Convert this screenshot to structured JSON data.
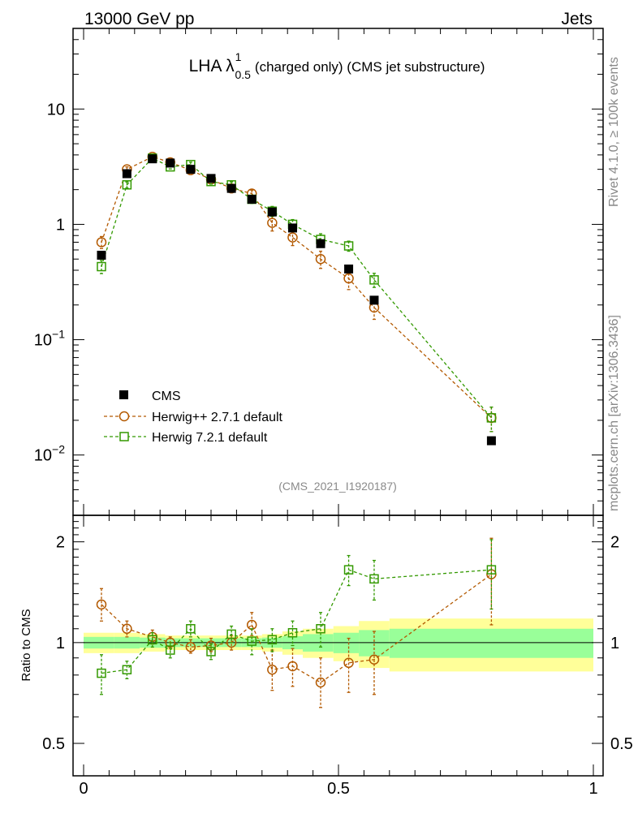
{
  "header": {
    "left": "13000 GeV pp",
    "right": "Jets"
  },
  "side_labels": {
    "top": "Rivet 4.1.0, ≥ 100k events",
    "bottom": "mcplots.cern.ch [arXiv:1306.3436]"
  },
  "watermark": "(CMS_2021_I1920187)",
  "colors": {
    "cms": "#000000",
    "herwigpp": "#b35900",
    "herwig7": "#339900",
    "band_outer": "#ffff99",
    "band_inner": "#99ff99"
  },
  "chart_data": [
    {
      "type": "scatter",
      "title": "LHA λ",
      "title_sup": "1",
      "title_sub": "0.5",
      "title_rest": "(charged only) (CMS jet substructure)",
      "yscale": "log",
      "xlim": [
        0,
        1
      ],
      "ylim": [
        0.003,
        50
      ],
      "ytick_labels": [
        {
          "value": 10,
          "base": "10",
          "exp": ""
        },
        {
          "value": 1,
          "base": "1",
          "exp": ""
        },
        {
          "value": 0.1,
          "base": "10",
          "exp": "−1"
        },
        {
          "value": 0.01,
          "base": "10",
          "exp": "−2"
        }
      ],
      "legend_position": "lower-left",
      "legend": [
        "CMS",
        "Herwig++ 2.7.1 default",
        "Herwig 7.2.1 default"
      ],
      "x": [
        0.035,
        0.085,
        0.135,
        0.17,
        0.21,
        0.25,
        0.29,
        0.33,
        0.37,
        0.41,
        0.465,
        0.52,
        0.57,
        0.8
      ],
      "series": [
        {
          "name": "CMS",
          "marker": "filled-square",
          "values": [
            0.54,
            2.75,
            3.7,
            3.4,
            3.0,
            2.5,
            2.05,
            1.65,
            1.28,
            0.93,
            0.68,
            0.41,
            0.22,
            0.0133
          ]
        },
        {
          "name": "Herwig++ 2.7.1 default",
          "marker": "open-circle",
          "values": [
            0.7,
            3.0,
            3.85,
            3.45,
            2.95,
            2.45,
            2.05,
            1.85,
            1.03,
            0.77,
            0.5,
            0.34,
            0.19,
            0.021
          ],
          "err_rel": [
            0.12,
            0.05,
            0.04,
            0.04,
            0.04,
            0.05,
            0.05,
            0.07,
            0.15,
            0.15,
            0.17,
            0.2,
            0.21,
            0.24
          ]
        },
        {
          "name": "Herwig 7.2.1 default",
          "marker": "open-square",
          "values": [
            0.43,
            2.2,
            3.75,
            3.15,
            3.3,
            2.35,
            2.2,
            1.65,
            1.3,
            1.0,
            0.74,
            0.65,
            0.33,
            0.021
          ],
          "err_rel": [
            0.13,
            0.06,
            0.04,
            0.04,
            0.05,
            0.05,
            0.06,
            0.08,
            0.1,
            0.1,
            0.12,
            0.1,
            0.14,
            0.24
          ]
        }
      ]
    },
    {
      "type": "scatter",
      "ylabel": "Ratio to CMS",
      "yscale": "log",
      "xlim": [
        0,
        1
      ],
      "ylim": [
        0.4,
        2.4
      ],
      "ytick_labels": [
        {
          "value": 2,
          "label": "2"
        },
        {
          "value": 1,
          "label": "1"
        },
        {
          "value": 0.5,
          "label": "0.5"
        }
      ],
      "xtick_labels": [
        {
          "value": 0,
          "label": "0"
        },
        {
          "value": 0.5,
          "label": "0.5"
        },
        {
          "value": 1,
          "label": "1"
        }
      ],
      "x": [
        0.035,
        0.085,
        0.135,
        0.17,
        0.21,
        0.25,
        0.29,
        0.33,
        0.37,
        0.41,
        0.465,
        0.52,
        0.57,
        0.8
      ],
      "series": [
        {
          "name": "Herwig++ 2.7.1 default",
          "values": [
            1.3,
            1.1,
            1.04,
            1.0,
            0.97,
            0.98,
            1.0,
            1.13,
            0.83,
            0.85,
            0.76,
            0.87,
            0.89,
            1.6
          ],
          "err_low": [
            1.16,
            1.04,
            0.99,
            0.96,
            0.93,
            0.94,
            0.95,
            1.05,
            0.72,
            0.74,
            0.64,
            0.71,
            0.7,
            1.13
          ],
          "err_high": [
            1.45,
            1.16,
            1.09,
            1.04,
            1.02,
            1.03,
            1.05,
            1.23,
            0.95,
            0.96,
            0.9,
            1.03,
            1.08,
            2.05
          ]
        },
        {
          "name": "Herwig 7.2.1 default",
          "values": [
            0.81,
            0.83,
            1.02,
            0.95,
            1.1,
            0.94,
            1.06,
            1.01,
            1.02,
            1.07,
            1.1,
            1.65,
            1.55,
            1.65
          ],
          "err_low": [
            0.7,
            0.78,
            0.97,
            0.9,
            1.04,
            0.89,
            1.0,
            0.92,
            0.94,
            0.98,
            0.97,
            1.48,
            1.34,
            1.26
          ],
          "err_high": [
            0.92,
            0.88,
            1.07,
            1.0,
            1.16,
            0.99,
            1.12,
            1.1,
            1.1,
            1.16,
            1.23,
            1.82,
            1.76,
            2.03
          ]
        }
      ],
      "band_edges": [
        0,
        0.06,
        0.11,
        0.16,
        0.19,
        0.23,
        0.27,
        0.31,
        0.35,
        0.39,
        0.43,
        0.49,
        0.54,
        0.6,
        1.0
      ],
      "band_outer": [
        0.07,
        0.07,
        0.06,
        0.05,
        0.05,
        0.05,
        0.05,
        0.05,
        0.06,
        0.08,
        0.1,
        0.12,
        0.16,
        0.18
      ],
      "band_inner": [
        0.04,
        0.04,
        0.035,
        0.03,
        0.03,
        0.03,
        0.03,
        0.03,
        0.035,
        0.045,
        0.06,
        0.07,
        0.09,
        0.1
      ],
      "reference_line": 1
    }
  ]
}
